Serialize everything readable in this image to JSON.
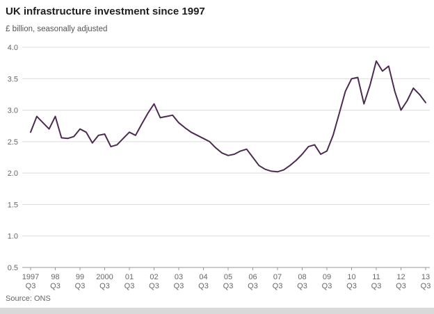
{
  "header": {
    "title": "UK infrastructure investment since 1997",
    "subtitle": "£ billion, seasonally adjusted"
  },
  "footer": {
    "source": "Source: ONS"
  },
  "colors": {
    "line": "#4c2a52",
    "grid": "#dcdcdc",
    "axis": "#999999",
    "tick": "#999999",
    "label_text": "#666666",
    "title_text": "#1e1e1e",
    "footer_bar": "#d9d9d9"
  },
  "chart_data": {
    "type": "line",
    "title": "UK infrastructure investment since 1997",
    "subtitle": "£ billion, seasonally adjusted",
    "source": "Source: ONS",
    "xlabel": "",
    "ylabel": "£ billion, seasonally adjusted",
    "ylim": [
      0.5,
      4.0
    ],
    "yticks": [
      0.5,
      1.0,
      1.5,
      2.0,
      2.5,
      3.0,
      3.5,
      4.0
    ],
    "grid": "horizontal",
    "legend": "none",
    "x_frequency": "quarterly",
    "x_start": "1997 Q3",
    "x_end": "2013 Q3",
    "xtick_every": 4,
    "xtick_labels": [
      [
        "1997",
        "Q3"
      ],
      [
        "98",
        "Q3"
      ],
      [
        "99",
        "Q3"
      ],
      [
        "2000",
        "Q3"
      ],
      [
        "01",
        "Q3"
      ],
      [
        "02",
        "Q3"
      ],
      [
        "03",
        "Q3"
      ],
      [
        "04",
        "Q3"
      ],
      [
        "05",
        "Q3"
      ],
      [
        "06",
        "Q3"
      ],
      [
        "07",
        "Q3"
      ],
      [
        "08",
        "Q3"
      ],
      [
        "09",
        "Q3"
      ],
      [
        "10",
        "Q3"
      ],
      [
        "11",
        "Q3"
      ],
      [
        "12",
        "Q3"
      ],
      [
        "13",
        "Q3"
      ]
    ],
    "series": [
      {
        "name": "UK infrastructure investment (£ billion)",
        "values": [
          2.65,
          2.9,
          2.8,
          2.7,
          2.9,
          2.56,
          2.55,
          2.58,
          2.7,
          2.65,
          2.48,
          2.6,
          2.62,
          2.42,
          2.45,
          2.55,
          2.65,
          2.6,
          2.78,
          2.95,
          3.1,
          2.88,
          2.9,
          2.92,
          2.8,
          2.72,
          2.65,
          2.6,
          2.55,
          2.5,
          2.4,
          2.32,
          2.28,
          2.3,
          2.35,
          2.38,
          2.25,
          2.12,
          2.06,
          2.03,
          2.02,
          2.05,
          2.12,
          2.2,
          2.3,
          2.42,
          2.45,
          2.3,
          2.35,
          2.6,
          2.95,
          3.3,
          3.5,
          3.52,
          3.1,
          3.4,
          3.78,
          3.62,
          3.7,
          3.3,
          3.0,
          3.15,
          3.35,
          3.25,
          3.12
        ]
      }
    ]
  }
}
